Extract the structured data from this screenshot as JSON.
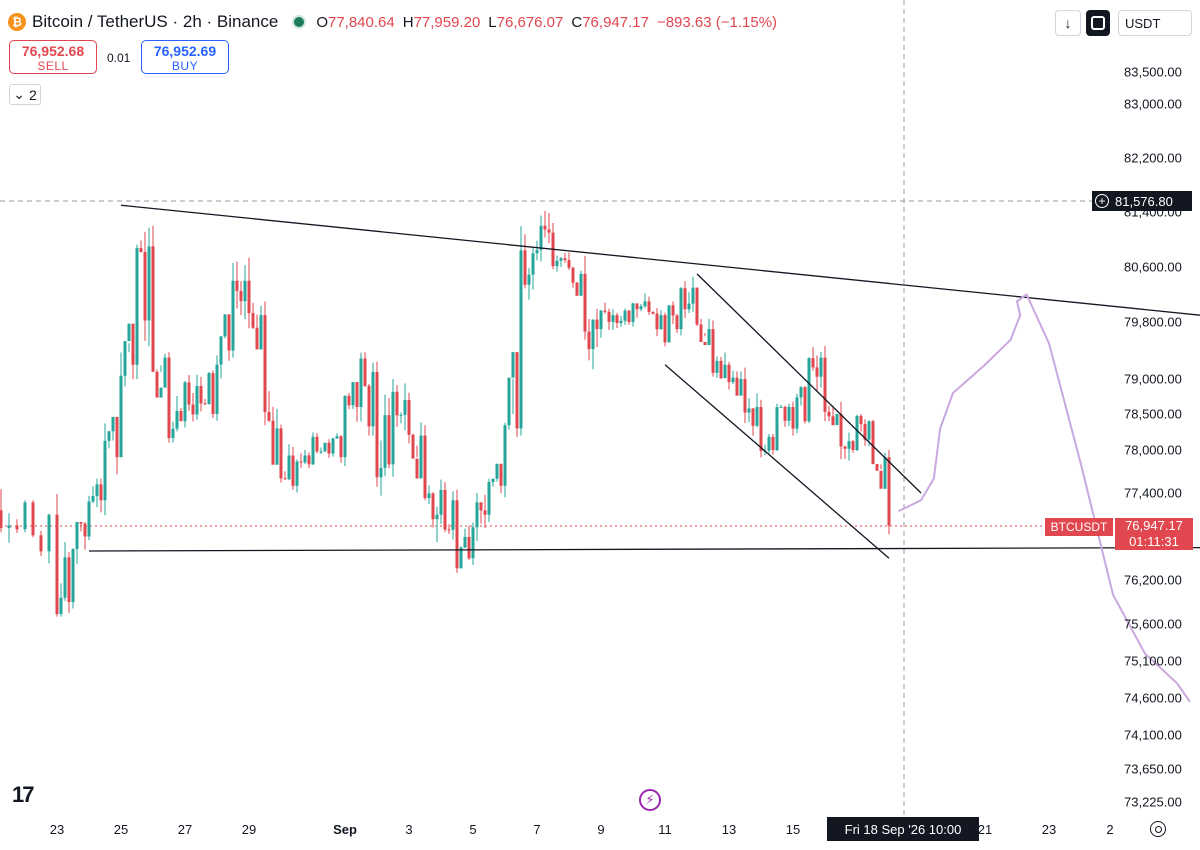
{
  "header": {
    "title": "Bitcoin / TetherUS · 2h · Binance",
    "coin_symbol": "₿",
    "ohlc": {
      "o_label": "O",
      "o": "77,840.64",
      "h_label": "H",
      "h": "77,959.20",
      "l_label": "L",
      "l": "76,676.07",
      "c_label": "C",
      "c": "76,947.17",
      "change": "−893.63 (−1.15%)"
    }
  },
  "trade": {
    "sell_price": "76,952.68",
    "sell_label": "SELL",
    "qty": "0.01",
    "buy_price": "76,952.69",
    "buy_label": "BUY",
    "indicator_count": "2"
  },
  "toolbar": {
    "currency": "USDT"
  },
  "price_axis": {
    "labels": [
      "83,500.00",
      "83,000.00",
      "82,200.00",
      "81,400.00",
      "80,600.00",
      "79,800.00",
      "79,000.00",
      "78,500.00",
      "78,000.00",
      "77,400.00",
      "76,200.00",
      "75,600.00",
      "75,100.00",
      "74,600.00",
      "74,100.00",
      "73,650.00",
      "73,225.00"
    ],
    "crosshair_price": "81,576.80",
    "last_symbol": "BTCUSDT",
    "last_price": "76,947.17",
    "countdown": "01:11:31"
  },
  "time_axis": {
    "labels": [
      "23",
      "25",
      "27",
      "29",
      "Sep",
      "3",
      "5",
      "7",
      "9",
      "11",
      "13",
      "15",
      "21",
      "23",
      "2"
    ],
    "crosshair_date": "Fri 18 Sep '26   10:00"
  },
  "colors": {
    "up": "#26a69a",
    "down": "#e0474e",
    "trendline": "#131722",
    "drawing": "#c9a8e0",
    "crosshair": "#9598a1"
  },
  "chart_data": {
    "type": "candlestick",
    "title": "Bitcoin / TetherUS · 2h · Binance",
    "ylabel": "USDT",
    "ylim": [
      72950,
      83900
    ],
    "xlim": [
      -4,
      41
    ],
    "x_unit": "days from Aug 23",
    "candles_sketch": [
      [
        -4,
        76200,
        76800,
        75000,
        75500
      ],
      [
        -3,
        75500,
        77600,
        75200,
        77200
      ],
      [
        -2,
        77200,
        78200,
        76500,
        76900
      ],
      [
        -1,
        76900,
        77300,
        76300,
        77100
      ],
      [
        0,
        77100,
        77500,
        75700,
        75900
      ],
      [
        0.5,
        75900,
        77000,
        75800,
        76800
      ],
      [
        1,
        76800,
        77600,
        76600,
        77300
      ],
      [
        1.5,
        77300,
        78400,
        76600,
        77900
      ],
      [
        2,
        77900,
        79500,
        77600,
        79200
      ],
      [
        2.5,
        79200,
        81300,
        79000,
        80900
      ],
      [
        3,
        80900,
        81200,
        79100,
        79300
      ],
      [
        3.5,
        79300,
        79600,
        78100,
        78400
      ],
      [
        4,
        78400,
        79200,
        78000,
        78900
      ],
      [
        4.5,
        78900,
        79300,
        78300,
        78500
      ],
      [
        5,
        78500,
        79600,
        78400,
        79400
      ],
      [
        5.5,
        79400,
        80900,
        79300,
        80400
      ],
      [
        6,
        80400,
        81600,
        79700,
        79900
      ],
      [
        6.5,
        79900,
        80100,
        77800,
        78300
      ],
      [
        7,
        78300,
        78600,
        76900,
        77500
      ],
      [
        7.5,
        77500,
        78000,
        77300,
        77800
      ],
      [
        8,
        77800,
        78300,
        77700,
        78100
      ],
      [
        8.5,
        78100,
        78300,
        77700,
        77900
      ],
      [
        9,
        77900,
        78800,
        77500,
        78600
      ],
      [
        9.5,
        78600,
        79400,
        78200,
        79100
      ],
      [
        10,
        79100,
        79500,
        77200,
        77800
      ],
      [
        10.5,
        77800,
        79000,
        77400,
        78700
      ],
      [
        11,
        78700,
        79000,
        77900,
        78200
      ],
      [
        11.5,
        78200,
        78400,
        76600,
        77100
      ],
      [
        12,
        77100,
        77700,
        76400,
        77300
      ],
      [
        12.5,
        77300,
        77700,
        76300,
        76500
      ],
      [
        13,
        76500,
        77400,
        76200,
        77100
      ],
      [
        13.5,
        77100,
        77600,
        77000,
        77500
      ],
      [
        14,
        77500,
        78500,
        77200,
        78300
      ],
      [
        14.5,
        78300,
        81900,
        78200,
        80800
      ],
      [
        15,
        80800,
        82300,
        80500,
        81100
      ],
      [
        15.5,
        81100,
        81500,
        80500,
        80700
      ],
      [
        16,
        80700,
        81200,
        80300,
        80500
      ],
      [
        16.5,
        80500,
        80900,
        78900,
        79700
      ],
      [
        17,
        79700,
        80200,
        79500,
        79900
      ],
      [
        17.5,
        79900,
        80100,
        79600,
        79800
      ],
      [
        18,
        79800,
        80300,
        79600,
        80100
      ],
      [
        18.5,
        80100,
        80200,
        79600,
        79900
      ],
      [
        19,
        79900,
        80100,
        79000,
        79700
      ],
      [
        19.5,
        79700,
        80600,
        79600,
        80300
      ],
      [
        20,
        80300,
        80500,
        79600,
        79700
      ],
      [
        20.5,
        79700,
        80000,
        79000,
        79200
      ],
      [
        21,
        79200,
        79500,
        78800,
        79000
      ],
      [
        21.5,
        79000,
        79300,
        78200,
        78600
      ],
      [
        22,
        78600,
        79100,
        77800,
        78000
      ],
      [
        22.5,
        78000,
        78700,
        77900,
        78600
      ],
      [
        23,
        78600,
        78900,
        78200,
        78400
      ],
      [
        23.5,
        78400,
        79600,
        78300,
        79300
      ],
      [
        24,
        79300,
        79600,
        78400,
        78500
      ],
      [
        24.5,
        78500,
        78700,
        77700,
        78000
      ],
      [
        25,
        78000,
        78500,
        77800,
        78400
      ],
      [
        25.5,
        78400,
        78600,
        77800,
        77900
      ],
      [
        26,
        77900,
        78000,
        76700,
        76950
      ]
    ],
    "trendlines": [
      {
        "name": "upper",
        "points": [
          [
            2,
            81500
          ],
          [
            40,
            79700
          ]
        ]
      },
      {
        "name": "lower",
        "points": [
          [
            1,
            76600
          ],
          [
            38,
            76650
          ]
        ]
      },
      {
        "name": "channel-top",
        "points": [
          [
            20,
            80500
          ],
          [
            27,
            77400
          ]
        ]
      },
      {
        "name": "channel-bottom",
        "points": [
          [
            19,
            79200
          ],
          [
            26,
            76500
          ]
        ]
      }
    ],
    "projection": [
      [
        26.3,
        77150
      ],
      [
        27,
        77300
      ],
      [
        27.4,
        77600
      ],
      [
        27.6,
        78300
      ],
      [
        28,
        78800
      ],
      [
        29,
        79200
      ],
      [
        29.8,
        79550
      ],
      [
        30.1,
        79900
      ],
      [
        30,
        80100
      ],
      [
        30.3,
        80200
      ],
      [
        31,
        79500
      ],
      [
        32,
        77800
      ],
      [
        33,
        76000
      ],
      [
        34,
        75200
      ],
      [
        35,
        74800
      ],
      [
        35.4,
        74550
      ]
    ],
    "last_price_line": 76947.17,
    "crosshair": {
      "price": 81576.8,
      "x": 35.3
    }
  }
}
